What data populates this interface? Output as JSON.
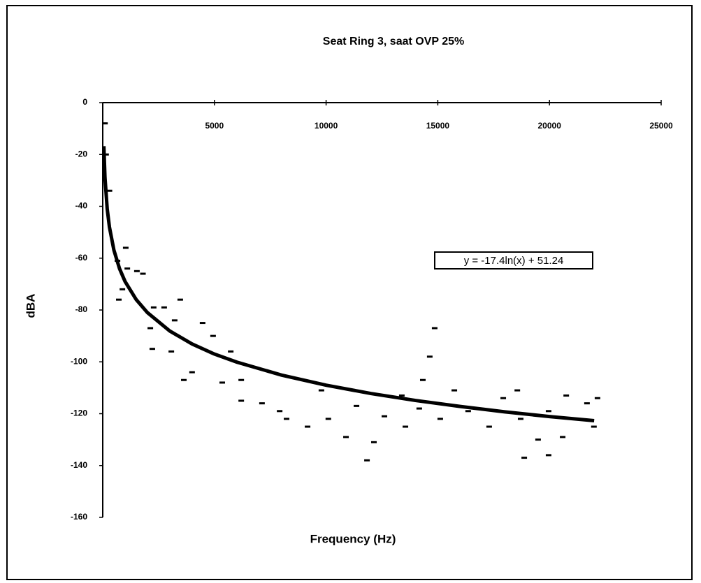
{
  "chart_data": {
    "type": "scatter",
    "title": "Seat Ring 3, saat OVP 25%",
    "x_label": "Frequency (Hz)",
    "y_label": "dBA",
    "xlim": [
      0,
      25000
    ],
    "ylim": [
      -160,
      0
    ],
    "xticks": [
      5000,
      10000,
      15000,
      20000,
      25000
    ],
    "yticks": [
      0,
      -20,
      -40,
      -60,
      -80,
      -100,
      -120,
      -140,
      -160
    ],
    "color": "#000000",
    "x": [
      100,
      150,
      300,
      660,
      1030,
      1100,
      1530,
      1800,
      720,
      880,
      2280,
      2750,
      3470,
      2130,
      3220,
      4470,
      2220,
      3070,
      4000,
      4940,
      5730,
      3630,
      5350,
      6200,
      6200,
      7130,
      7920,
      8230,
      9170,
      9790,
      10100,
      10890,
      11360,
      12140,
      12610,
      13390,
      14170,
      14860,
      14640,
      14330,
      13550,
      15110,
      15740,
      16360,
      17300,
      17930,
      18560,
      18710,
      19490,
      19960,
      20750,
      20590,
      21680,
      22150,
      21990,
      18870,
      19960,
      11830
    ],
    "values": [
      -8,
      -20,
      -34,
      -61,
      -56,
      -64,
      -65,
      -66,
      -76,
      -72,
      -79,
      -79,
      -76,
      -87,
      -84,
      -85,
      -95,
      -96,
      -104,
      -90,
      -96,
      -107,
      -108,
      -107,
      -115,
      -116,
      -119,
      -122,
      -125,
      -111,
      -122,
      -129,
      -117,
      -131,
      -121,
      -113,
      -118,
      -87,
      -98,
      -107,
      -125,
      -122,
      -111,
      -119,
      -125,
      -114,
      -111,
      -122,
      -130,
      -119,
      -113,
      -129,
      -116,
      -114,
      -125,
      -137,
      -136,
      -138
    ],
    "trendline": {
      "label": "y = -17.4ln(x) + 51.24",
      "x": [
        50,
        100,
        200,
        300,
        500,
        750,
        1000,
        1500,
        2000,
        3000,
        4000,
        5000,
        6000,
        8000,
        10000,
        12000,
        14000,
        16000,
        18000,
        20000,
        22000
      ],
      "values": [
        -16.8,
        -28.9,
        -41.0,
        -48.0,
        -56.9,
        -64.0,
        -69.0,
        -76.0,
        -81.0,
        -88.1,
        -93.1,
        -97.0,
        -100.1,
        -105.1,
        -109.0,
        -112.2,
        -114.9,
        -117.2,
        -119.3,
        -121.1,
        -122.7
      ]
    }
  }
}
